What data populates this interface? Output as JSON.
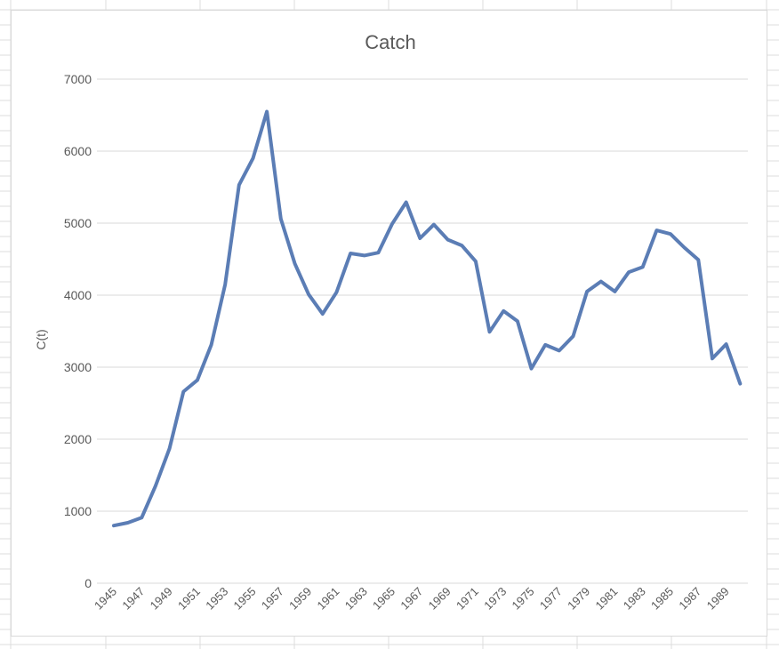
{
  "colors": {
    "series_line": "#5B7DB5",
    "gridline": "#d9d9d9",
    "text": "#595959",
    "sheet_grid": "#dcdcdc"
  },
  "chart_data": {
    "type": "line",
    "title": "Catch",
    "xlabel": "",
    "ylabel": "C(t)",
    "ylim": [
      0,
      7000
    ],
    "yticks": [
      0,
      1000,
      2000,
      3000,
      4000,
      5000,
      6000,
      7000
    ],
    "xtick_labels": [
      "1945",
      "1947",
      "1949",
      "1951",
      "1953",
      "1955",
      "1957",
      "1959",
      "1961",
      "1963",
      "1965",
      "1967",
      "1969",
      "1971",
      "1973",
      "1975",
      "1977",
      "1979",
      "1981",
      "1983",
      "1985",
      "1987",
      "1989"
    ],
    "grid": true,
    "legend": "none",
    "x": [
      1945,
      1946,
      1947,
      1948,
      1949,
      1950,
      1951,
      1952,
      1953,
      1954,
      1955,
      1956,
      1957,
      1958,
      1959,
      1960,
      1961,
      1962,
      1963,
      1964,
      1965,
      1966,
      1967,
      1968,
      1969,
      1970,
      1971,
      1972,
      1973,
      1974,
      1975,
      1976,
      1977,
      1978,
      1979,
      1980,
      1981,
      1982,
      1983,
      1984,
      1985,
      1986,
      1987,
      1988,
      1989,
      1990
    ],
    "values": [
      800,
      840,
      910,
      1350,
      1870,
      2660,
      2820,
      3310,
      4150,
      5530,
      5900,
      6550,
      5060,
      4440,
      4010,
      3740,
      4040,
      4580,
      4550,
      4590,
      4990,
      5290,
      4790,
      4980,
      4770,
      4690,
      4470,
      3490,
      3780,
      3640,
      2980,
      3310,
      3230,
      3430,
      4050,
      4190,
      4050,
      4320,
      4390,
      4900,
      4850,
      4660,
      4490,
      3120,
      3320,
      2770
    ],
    "series": [
      {
        "color": "#5B7DB5"
      }
    ]
  }
}
